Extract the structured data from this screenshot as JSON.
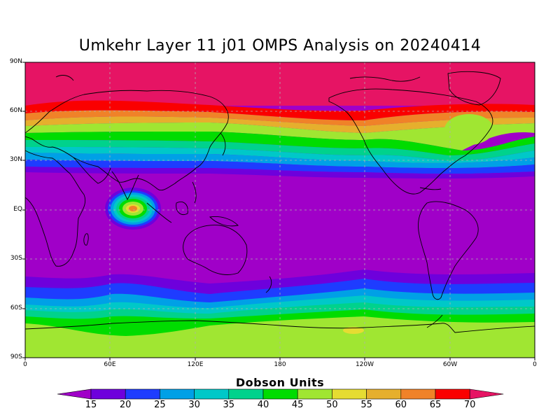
{
  "title": "Umkehr Layer 11 j01 OMPS Analysis on 20240414",
  "lat_labels": [
    "90N",
    "60N",
    "30N",
    "EQ",
    "30S",
    "60S",
    "90S"
  ],
  "lon_labels": [
    "0",
    "60E",
    "120E",
    "180",
    "120W",
    "60W",
    "0"
  ],
  "colorbar": {
    "title": "Dobson Units",
    "ticks": [
      "15",
      "20",
      "25",
      "30",
      "35",
      "40",
      "45",
      "50",
      "55",
      "60",
      "65",
      "70"
    ],
    "colors": [
      "#a000c8",
      "#6e00dc",
      "#1e3cff",
      "#00a0e6",
      "#00c8c8",
      "#00d28c",
      "#00dc00",
      "#a0e632",
      "#e6dc32",
      "#e6af2d",
      "#f08228",
      "#fa0000",
      "#e61464"
    ]
  },
  "legend_units": "Dobson Units"
}
